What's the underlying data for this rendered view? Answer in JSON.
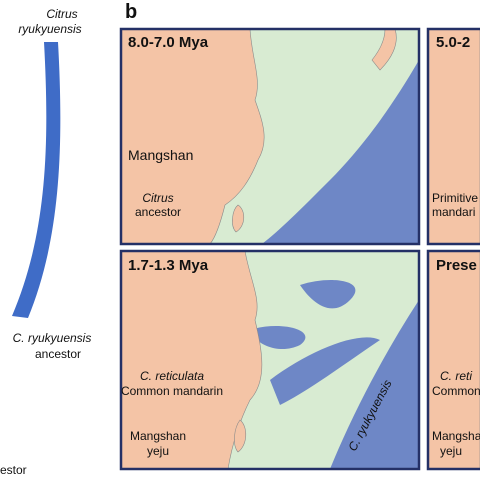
{
  "left": {
    "top_label_1": "Citrus",
    "top_label_2": "ryukyuensis",
    "mid_label_1": "C. ryukyuensis",
    "mid_label_2": "ancestor",
    "bottom_label": "estor"
  },
  "panel_letter": "b",
  "panels": [
    {
      "period": "8.0-7.0 Mya",
      "labels": [
        "Mangshan",
        "Citrus",
        "ancestor"
      ]
    },
    {
      "period": "5.0-2",
      "labels": [
        "Primitive",
        "mandari"
      ]
    },
    {
      "period": "1.7-1.3 Mya",
      "labels": [
        "C. reticulata",
        "Common mandarin",
        "Mangshan",
        "yeju",
        "C. ryukyuensis"
      ]
    },
    {
      "period": "Prese",
      "labels": [
        "C. reti",
        "Common",
        "Mangsha",
        "yeju"
      ]
    }
  ]
}
